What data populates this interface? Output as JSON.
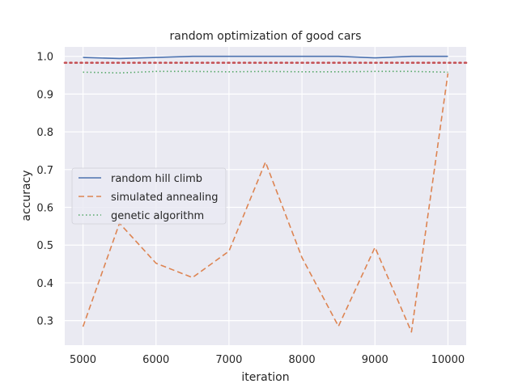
{
  "chart_data": {
    "type": "line",
    "title": "random optimization of good cars",
    "xlabel": "iteration",
    "ylabel": "accuracy",
    "xlim": [
      4750,
      10250
    ],
    "ylim": [
      0.235,
      1.025
    ],
    "x_ticks": [
      5000,
      6000,
      7000,
      8000,
      9000,
      10000
    ],
    "y_ticks": [
      0.3,
      0.4,
      0.5,
      0.6,
      0.7,
      0.8,
      0.9,
      1.0
    ],
    "x_tick_labels": [
      "5000",
      "6000",
      "7000",
      "8000",
      "9000",
      "10000"
    ],
    "y_tick_labels": [
      "0.3",
      "0.4",
      "0.5",
      "0.6",
      "0.7",
      "0.8",
      "0.9",
      "1.0"
    ],
    "grid": true,
    "legend_position": "center-left",
    "x": [
      5000,
      5500,
      6000,
      6500,
      7000,
      7500,
      8000,
      8500,
      9000,
      9500,
      10000
    ],
    "series": [
      {
        "name": "random hill climb",
        "style": "solid",
        "color": "#4c72b0",
        "values": [
          0.997,
          0.994,
          0.997,
          1.0,
          1.0,
          1.0,
          1.0,
          1.0,
          0.996,
          1.0,
          1.0
        ]
      },
      {
        "name": "simulated annealing",
        "style": "dashed",
        "color": "#dd8452",
        "values": [
          0.284,
          0.558,
          0.452,
          0.414,
          0.484,
          0.72,
          0.467,
          0.285,
          0.494,
          0.27,
          0.955
        ]
      },
      {
        "name": "genetic algorithm",
        "style": "dotted",
        "color": "#55a868",
        "values": [
          0.958,
          0.956,
          0.96,
          0.96,
          0.959,
          0.96,
          0.959,
          0.959,
          0.96,
          0.96,
          0.958
        ]
      }
    ],
    "reference_line": {
      "style": "dotted",
      "color": "#c44e52",
      "y": 0.983
    }
  }
}
